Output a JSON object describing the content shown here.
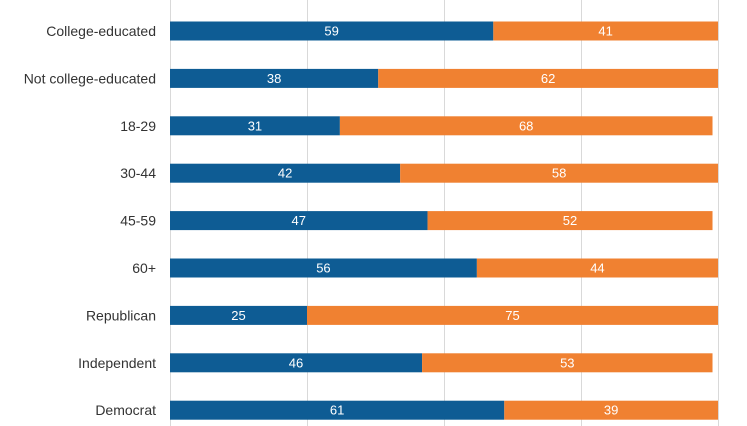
{
  "colors": {
    "series_a": "#0e5c94",
    "series_b": "#f08131",
    "grid": "#d9d9d9",
    "label": "#333333"
  },
  "chart_data": {
    "type": "bar",
    "orientation": "horizontal",
    "stacked": true,
    "categories": [
      "College-educated",
      "Not college-educated",
      "18-29",
      "30-44",
      "45-59",
      "60+",
      "Republican",
      "Independent",
      "Democrat"
    ],
    "series": [
      {
        "values": [
          59,
          38,
          31,
          42,
          47,
          56,
          25,
          46,
          61
        ]
      },
      {
        "values": [
          41,
          62,
          68,
          58,
          52,
          44,
          75,
          53,
          39
        ]
      }
    ],
    "xlim": [
      0,
      100
    ],
    "grid": true,
    "legend": "none",
    "title": "",
    "xlabel": "",
    "ylabel": ""
  }
}
